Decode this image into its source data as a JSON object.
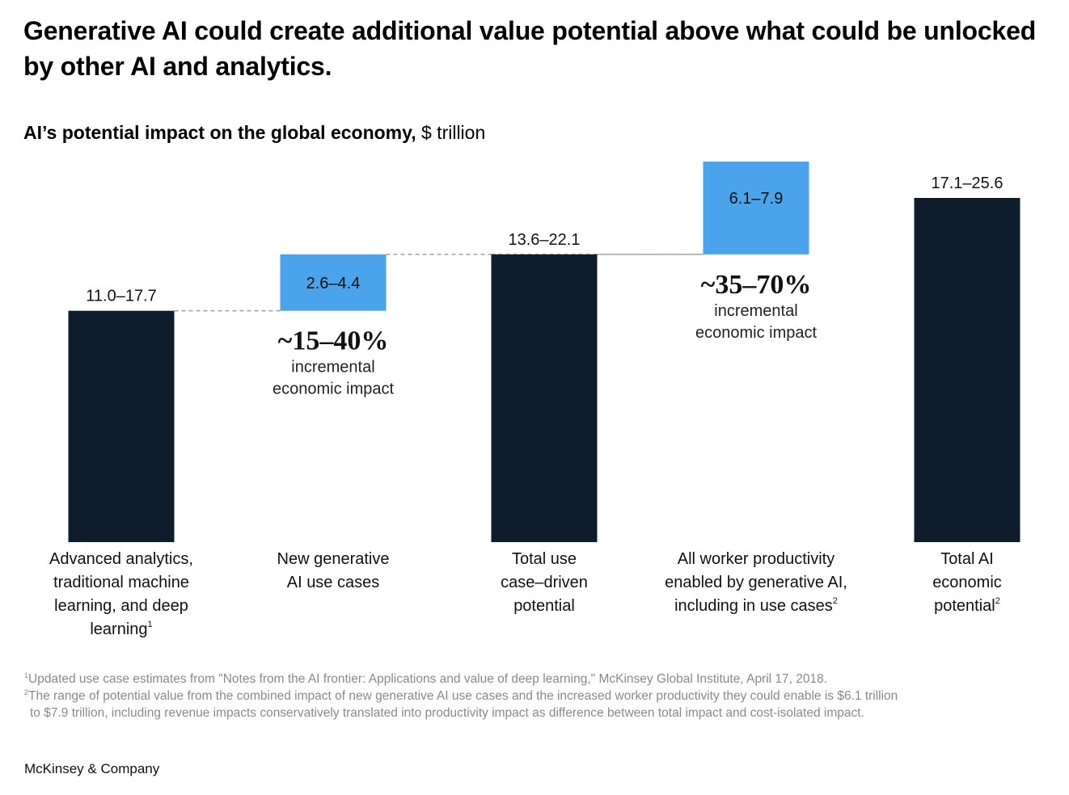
{
  "header": {
    "title": "Generative AI could create additional value potential above what could be unlocked by other AI and analytics.",
    "subtitle_bold": "AI’s potential impact on the global economy,",
    "subtitle_unit": "$ trillion"
  },
  "chart_data": {
    "type": "bar",
    "subtype": "waterfall",
    "title": "AI’s potential impact on the global economy, $ trillion",
    "xlabel": "",
    "ylabel": "$ trillion",
    "grid": false,
    "legend": "none",
    "categories": [
      "Advanced analytics, traditional machine learning, and deep learning",
      "New generative AI use cases",
      "Total use case–driven potential",
      "All worker productivity enabled by generative AI, including in use cases",
      "Total AI economic potential"
    ],
    "bars": [
      {
        "kind": "total",
        "label": "11.0–17.7",
        "low": 11.0,
        "high": 17.7,
        "color": "#0e1c2c"
      },
      {
        "kind": "increment",
        "label": "2.6–4.4",
        "low": 2.6,
        "high": 4.4,
        "color": "#4ba3ec"
      },
      {
        "kind": "total",
        "label": "13.6–22.1",
        "low": 13.6,
        "high": 22.1,
        "color": "#0e1c2c"
      },
      {
        "kind": "increment",
        "label": "6.1–7.9",
        "low": 6.1,
        "high": 7.9,
        "color": "#4ba3ec"
      },
      {
        "kind": "total",
        "label": "17.1–25.6",
        "low": 17.1,
        "high": 25.6,
        "color": "#0e1c2c"
      }
    ],
    "annotations": [
      {
        "bar_index": 1,
        "value": "~15–40%",
        "text_line1": "incremental",
        "text_line2": "economic impact"
      },
      {
        "bar_index": 3,
        "value": "~35–70%",
        "text_line1": "incremental",
        "text_line2": "economic impact"
      }
    ]
  },
  "categories_display": [
    {
      "lines": [
        "Advanced analytics,",
        "traditional machine",
        "learning, and deep",
        "learning"
      ],
      "footnote": "1"
    },
    {
      "lines": [
        "New generative",
        "AI use cases"
      ],
      "footnote": ""
    },
    {
      "lines": [
        "Total use",
        "case–driven",
        "potential"
      ],
      "footnote": ""
    },
    {
      "lines": [
        "All worker productivity",
        "enabled by generative AI,",
        "including in use cases"
      ],
      "footnote": "2"
    },
    {
      "lines": [
        "Total AI",
        "economic",
        "potential"
      ],
      "footnote": "2"
    }
  ],
  "footnotes": [
    {
      "num": "1",
      "text": "Updated use case estimates from \"Notes from the AI frontier: Applications and value of deep learning,\" McKinsey Global Institute, April 17, 2018."
    },
    {
      "num": "2",
      "text": "The range of potential value from the combined impact of new generative AI use cases and the increased worker productivity they could enable is $6.1 trillion",
      "text2": "to $7.9 trillion, including revenue impacts conservatively translated into productivity impact as difference between total impact and cost-isolated impact."
    }
  ],
  "brand": "McKinsey & Company"
}
